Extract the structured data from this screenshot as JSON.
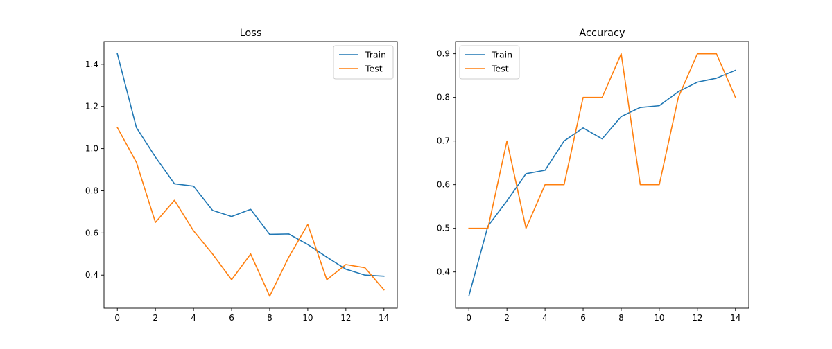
{
  "chart_data": [
    {
      "type": "line",
      "title": "Loss",
      "xlabel": "",
      "ylabel": "",
      "x": [
        0,
        1,
        2,
        3,
        4,
        5,
        6,
        7,
        8,
        9,
        10,
        11,
        12,
        13,
        14
      ],
      "xlim": [
        -0.7,
        14.7
      ],
      "ylim": [
        0.243,
        1.508
      ],
      "xticks": [
        0,
        2,
        4,
        6,
        8,
        10,
        12,
        14
      ],
      "yticks": [
        0.4,
        0.6,
        0.8,
        1.0,
        1.2,
        1.4
      ],
      "ytick_labels": [
        "0.4",
        "0.6",
        "0.8",
        "1.0",
        "1.2",
        "1.4"
      ],
      "grid": false,
      "legend_position": "upper right",
      "series": [
        {
          "name": "Train",
          "color": "#1f77b4",
          "values": [
            1.45,
            1.1,
            0.96,
            0.833,
            0.822,
            0.707,
            0.678,
            0.712,
            0.593,
            0.595,
            0.545,
            0.485,
            0.428,
            0.4,
            0.395
          ]
        },
        {
          "name": "Test",
          "color": "#ff7f0e",
          "values": [
            1.1,
            0.935,
            0.65,
            0.755,
            0.61,
            0.5,
            0.378,
            0.5,
            0.3,
            0.485,
            0.64,
            0.378,
            0.45,
            0.435,
            0.33
          ]
        }
      ]
    },
    {
      "type": "line",
      "title": "Accuracy",
      "xlabel": "",
      "ylabel": "",
      "x": [
        0,
        1,
        2,
        3,
        4,
        5,
        6,
        7,
        8,
        9,
        10,
        11,
        12,
        13,
        14
      ],
      "xlim": [
        -0.7,
        14.7
      ],
      "ylim": [
        0.317,
        0.928
      ],
      "xticks": [
        0,
        2,
        4,
        6,
        8,
        10,
        12,
        14
      ],
      "yticks": [
        0.4,
        0.5,
        0.6,
        0.7,
        0.8,
        0.9
      ],
      "ytick_labels": [
        "0.4",
        "0.5",
        "0.6",
        "0.7",
        "0.8",
        "0.9"
      ],
      "grid": false,
      "legend_position": "upper left",
      "series": [
        {
          "name": "Train",
          "color": "#1f77b4",
          "values": [
            0.345,
            0.505,
            0.563,
            0.625,
            0.633,
            0.7,
            0.73,
            0.705,
            0.756,
            0.777,
            0.781,
            0.813,
            0.835,
            0.844,
            0.862
          ]
        },
        {
          "name": "Test",
          "color": "#ff7f0e",
          "values": [
            0.5,
            0.5,
            0.7,
            0.5,
            0.6,
            0.6,
            0.8,
            0.8,
            0.9,
            0.6,
            0.6,
            0.8,
            0.9,
            0.9,
            0.8
          ]
        }
      ]
    }
  ]
}
